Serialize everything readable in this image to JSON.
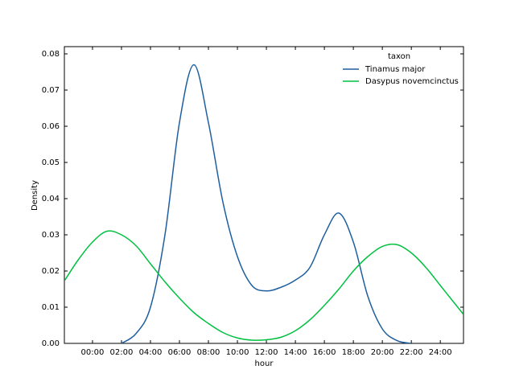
{
  "chart_data": {
    "type": "line",
    "x_label": "hour",
    "y_label": "Density",
    "x": [
      -1.9,
      -1,
      0,
      1,
      2,
      3,
      4,
      5,
      6,
      7,
      8,
      9,
      10,
      11,
      12,
      13,
      14,
      15,
      16,
      17,
      18,
      19,
      20,
      21,
      22,
      23,
      24,
      25,
      25.6
    ],
    "series": [
      {
        "name": "Tinamus major",
        "color": "#1f5fa0",
        "values": [
          null,
          null,
          null,
          null,
          0.0,
          0.0027,
          0.01,
          0.03,
          0.061,
          0.077,
          0.061,
          0.039,
          0.024,
          0.016,
          0.0145,
          0.0155,
          0.0175,
          0.021,
          0.03,
          0.036,
          0.028,
          0.013,
          0.004,
          0.0008,
          0.0,
          null,
          null,
          null,
          null
        ]
      },
      {
        "name": "Dasypus novemcinctus",
        "color": "#00c040",
        "values": [
          0.0175,
          0.023,
          0.028,
          0.031,
          0.03,
          0.027,
          0.022,
          0.017,
          0.0125,
          0.0085,
          0.0055,
          0.003,
          0.0015,
          0.0009,
          0.001,
          0.0017,
          0.0035,
          0.0065,
          0.0105,
          0.015,
          0.02,
          0.024,
          0.0268,
          0.0273,
          0.025,
          0.021,
          0.016,
          0.011,
          0.008
        ]
      }
    ],
    "xlim": [
      -1.94,
      25.6
    ],
    "xticks": [
      {
        "value": 0,
        "label": "00:00"
      },
      {
        "value": 2,
        "label": "02:00"
      },
      {
        "value": 4,
        "label": "04:00"
      },
      {
        "value": 6,
        "label": "06:00"
      },
      {
        "value": 8,
        "label": "08:00"
      },
      {
        "value": 10,
        "label": "10:00"
      },
      {
        "value": 12,
        "label": "12:00"
      },
      {
        "value": 14,
        "label": "14:00"
      },
      {
        "value": 16,
        "label": "16:00"
      },
      {
        "value": 18,
        "label": "18:00"
      },
      {
        "value": 20,
        "label": "20:00"
      },
      {
        "value": 22,
        "label": "22:00"
      },
      {
        "value": 24,
        "label": "24:00"
      }
    ],
    "ylim": [
      0,
      0.082
    ],
    "yticks": [
      {
        "value": 0,
        "label": "0.00"
      },
      {
        "value": 0.01,
        "label": "0.01"
      },
      {
        "value": 0.02,
        "label": "0.02"
      },
      {
        "value": 0.03,
        "label": "0.03"
      },
      {
        "value": 0.04,
        "label": "0.04"
      },
      {
        "value": 0.05,
        "label": "0.05"
      },
      {
        "value": 0.06,
        "label": "0.06"
      },
      {
        "value": 0.07,
        "label": "0.07"
      },
      {
        "value": 0.08,
        "label": "0.08"
      }
    ],
    "grid": false,
    "legend": "upper right",
    "legend_title": "taxon"
  }
}
